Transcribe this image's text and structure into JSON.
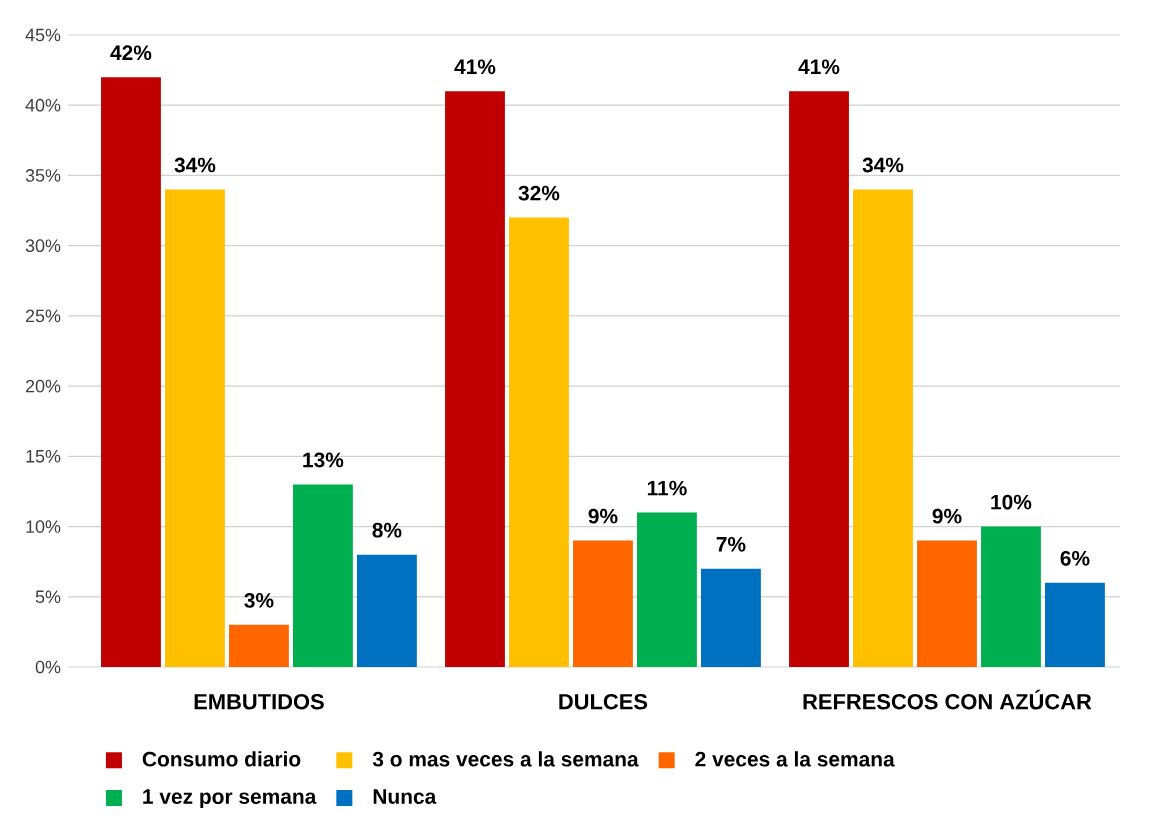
{
  "chart_data": {
    "type": "bar",
    "categories": [
      "EMBUTIDOS",
      "DULCES",
      "REFRESCOS CON AZÚCAR"
    ],
    "series": [
      {
        "name": "Consumo diario",
        "color": "#c00000",
        "values": [
          42,
          41,
          41
        ],
        "value_labels": [
          "42%",
          "41%",
          "41%"
        ]
      },
      {
        "name": "3 o mas veces a la semana",
        "color": "#ffc000",
        "values": [
          34,
          32,
          34
        ],
        "value_labels": [
          "34%",
          "32%",
          "34%"
        ]
      },
      {
        "name": "2 veces a la semana",
        "color": "#ff6600",
        "values": [
          3,
          9,
          9
        ],
        "value_labels": [
          "3%",
          "9%",
          "9%"
        ]
      },
      {
        "name": "1 vez por semana",
        "color": "#00b050",
        "values": [
          13,
          11,
          10
        ],
        "value_labels": [
          "13%",
          "11%",
          "10%"
        ]
      },
      {
        "name": "Nunca",
        "color": "#0070c0",
        "values": [
          8,
          7,
          6
        ],
        "value_labels": [
          "8%",
          "7%",
          "6%"
        ]
      }
    ],
    "ylim": [
      0,
      45
    ],
    "yticks": [
      {
        "value": 0,
        "label": "0%"
      },
      {
        "value": 5,
        "label": "5%"
      },
      {
        "value": 10,
        "label": "10%"
      },
      {
        "value": 15,
        "label": "15%"
      },
      {
        "value": 20,
        "label": "20%"
      },
      {
        "value": 25,
        "label": "25%"
      },
      {
        "value": 30,
        "label": "30%"
      },
      {
        "value": 35,
        "label": "35%"
      },
      {
        "value": 40,
        "label": "40%"
      },
      {
        "value": 45,
        "label": "45%"
      }
    ],
    "grid": "y",
    "legend": "bottom"
  }
}
